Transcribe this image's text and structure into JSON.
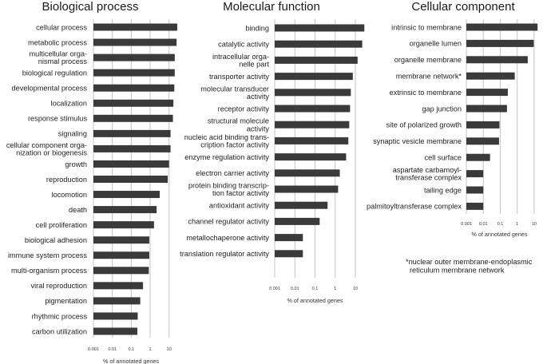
{
  "chart_data": [
    {
      "type": "bar",
      "orientation": "horizontal",
      "title": "Biological process",
      "xlabel": "% of annotated genes",
      "xscale": "log",
      "xlim": [
        0.001,
        30
      ],
      "xticks": [
        "0.001",
        "0.01",
        "0.1",
        "1",
        "10"
      ],
      "grid": true,
      "categories": [
        [
          "cellular process"
        ],
        [
          "metabolic process"
        ],
        [
          "multicellular orga-",
          "nismal process"
        ],
        [
          "biological regulation"
        ],
        [
          "developmental process"
        ],
        [
          "localization"
        ],
        [
          "response stimulus"
        ],
        [
          "signaling"
        ],
        [
          "cellular component orga-",
          "nization or biogenesis"
        ],
        [
          "growth"
        ],
        [
          "reproduction"
        ],
        [
          "locomotion"
        ],
        [
          "death"
        ],
        [
          "cell proliferation"
        ],
        [
          "biological adhesion"
        ],
        [
          "immune system process"
        ],
        [
          "multi-organism process"
        ],
        [
          "viral reproduction"
        ],
        [
          "pigmentation"
        ],
        [
          "rhythmic process"
        ],
        [
          "carbon utilization"
        ]
      ],
      "values": [
        27,
        25,
        20,
        20,
        19,
        17,
        16,
        12,
        12,
        10,
        8.5,
        3.2,
        2.2,
        1.6,
        0.9,
        0.9,
        0.85,
        0.42,
        0.3,
        0.22,
        0.21
      ]
    },
    {
      "type": "bar",
      "orientation": "horizontal",
      "title": "Molecular function",
      "xlabel": "% of annotated genes",
      "xscale": "log",
      "xlim": [
        0.001,
        30
      ],
      "xticks": [
        "0.001",
        "0.01",
        "0.1",
        "1",
        "10"
      ],
      "grid": true,
      "categories": [
        [
          "binding"
        ],
        [
          "catalytic activity"
        ],
        [
          "intracellular orga-",
          "nelle part"
        ],
        [
          "transporter activity"
        ],
        [
          "molecular transducer",
          "activity"
        ],
        [
          "receptor activity"
        ],
        [
          "structural molecule",
          "activity"
        ],
        [
          "nucleic acid binding trans-",
          "cription factor activity"
        ],
        [
          "enzyme regulation activity"
        ],
        [
          "electron carrier activity"
        ],
        [
          "protein binding transcrip-",
          "tion factor activity"
        ],
        [
          "antioxidant activity"
        ],
        [
          "channel regulator activity"
        ],
        [
          "metallochaperone activity"
        ],
        [
          "translation regulator activity"
        ]
      ],
      "values": [
        28,
        22,
        13,
        7.5,
        6,
        5.5,
        5,
        4.5,
        3.5,
        1.7,
        1.4,
        0.42,
        0.17,
        0.025,
        0.025
      ]
    },
    {
      "type": "bar",
      "orientation": "horizontal",
      "title": "Cellular component",
      "xlabel": "% of annotated genes",
      "xscale": "log",
      "xlim": [
        0.001,
        30
      ],
      "xticks": [
        "0.001",
        "0.01",
        "0.1",
        "1",
        "10"
      ],
      "grid": true,
      "categories": [
        [
          "intrinsic to membrane"
        ],
        [
          "organelle lumen"
        ],
        [
          "organelle membrane"
        ],
        [
          "membrane network*"
        ],
        [
          "extrinsic to membrane"
        ],
        [
          "gap junction"
        ],
        [
          "site of polarized growth"
        ],
        [
          "synaptic vesicle membrane"
        ],
        [
          "cell surface"
        ],
        [
          "aspartate carbamoyl-",
          "transferase complex"
        ],
        [
          "tailing edge"
        ],
        [
          "palmitoyltransferase complex"
        ]
      ],
      "values": [
        16,
        9.5,
        4.2,
        0.72,
        0.28,
        0.25,
        0.09,
        0.085,
        0.025,
        0.01,
        0.01,
        0.01
      ]
    }
  ],
  "footnote": [
    "*nuclear outer membrane-endoplasmic",
    "reticulum membrane network"
  ],
  "colors": {
    "bar": "#3a3a3a",
    "grid": "#c4c4c4"
  }
}
